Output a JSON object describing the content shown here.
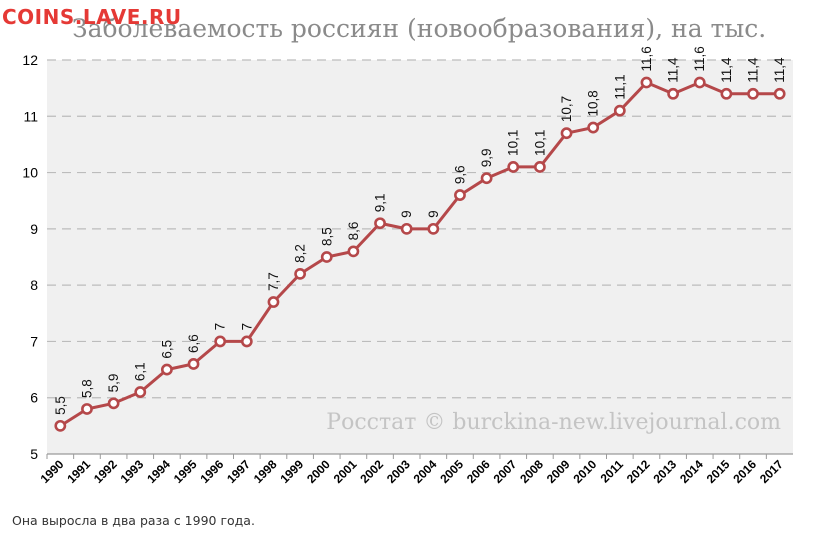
{
  "header": {
    "watermark": "COINS.LAVE.RU"
  },
  "footer": {
    "caption": "Она выросла в два раза с 1990 года."
  },
  "chart_data": {
    "type": "line",
    "title": "Заболеваемость россиян (новообразования), на тыс.",
    "source_note": "Росстат © burckina-new.livejournal.com",
    "xlabel": "",
    "ylabel": "",
    "ylim": [
      5,
      12
    ],
    "yticks": [
      "5",
      "6",
      "7",
      "8",
      "9",
      "10",
      "11",
      "12"
    ],
    "grid": true,
    "categories": [
      "1990",
      "1991",
      "1992",
      "1993",
      "1994",
      "1995",
      "1996",
      "1997",
      "1998",
      "1999",
      "2000",
      "2001",
      "2002",
      "2003",
      "2004",
      "2005",
      "2006",
      "2007",
      "2008",
      "2009",
      "2010",
      "2011",
      "2012",
      "2013",
      "2014",
      "2015",
      "2016",
      "2017"
    ],
    "values": [
      5.5,
      5.8,
      5.9,
      6.1,
      6.5,
      6.6,
      7,
      7,
      7.7,
      8.2,
      8.5,
      8.6,
      9.1,
      9,
      9,
      9.6,
      9.9,
      10.1,
      10.1,
      10.7,
      10.8,
      11.1,
      11.6,
      11.4,
      11.6,
      11.4,
      11.4,
      11.4
    ],
    "labels": [
      "5,5",
      "5,8",
      "5,9",
      "6,1",
      "6,5",
      "6,6",
      "7",
      "7",
      "7,7",
      "8,2",
      "8,5",
      "8,6",
      "9,1",
      "9",
      "9",
      "9,6",
      "9,9",
      "10,1",
      "10,1",
      "10,7",
      "10,8",
      "11,1",
      "11,6",
      "11,4",
      "11,6",
      "11,4",
      "11,4",
      "11,4"
    ],
    "colors": {
      "line": "#b5484a",
      "marker_fill": "#ffffff",
      "plot_bg": "#f0f0f0",
      "grid": "#bcbcbc"
    }
  }
}
